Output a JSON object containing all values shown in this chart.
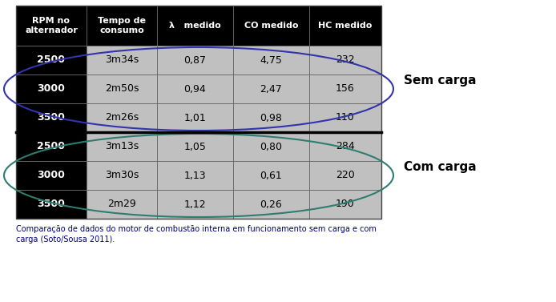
{
  "col_headers": [
    "RPM no\nalternador",
    "Tempo de\nconsumo",
    "λ   medido",
    "CO medido",
    "HC medido"
  ],
  "rows_sem_carga": [
    [
      "2500",
      "3m34s",
      "0,87",
      "4,75",
      "232"
    ],
    [
      "3000",
      "2m50s",
      "0,94",
      "2,47",
      "156"
    ],
    [
      "3500",
      "2m26s",
      "1,01",
      "0,98",
      "110"
    ]
  ],
  "rows_com_carga": [
    [
      "2500",
      "3m13s",
      "1,05",
      "0,80",
      "284"
    ],
    [
      "3000",
      "3m30s",
      "1,13",
      "0,61",
      "220"
    ],
    [
      "3500",
      "2m29",
      "1,12",
      "0,26",
      "190"
    ]
  ],
  "label_sem_carga": "Sem carga",
  "label_com_carga": "Com carga",
  "caption": "Comparação de dados do motor de combustão interna em funcionamento sem carga e com\ncarga (Soto/Sousa 2011).",
  "header_bg": "#000000",
  "header_fg": "#ffffff",
  "rpm_bg": "#000000",
  "rpm_fg": "#ffffff",
  "data_bg": "#c0c0c0",
  "data_fg": "#000000",
  "ellipse_sem_carga_color": "#3333aa",
  "ellipse_com_carga_color": "#2e7d6e",
  "caption_color": "#000080",
  "bg_color": "#ffffff"
}
